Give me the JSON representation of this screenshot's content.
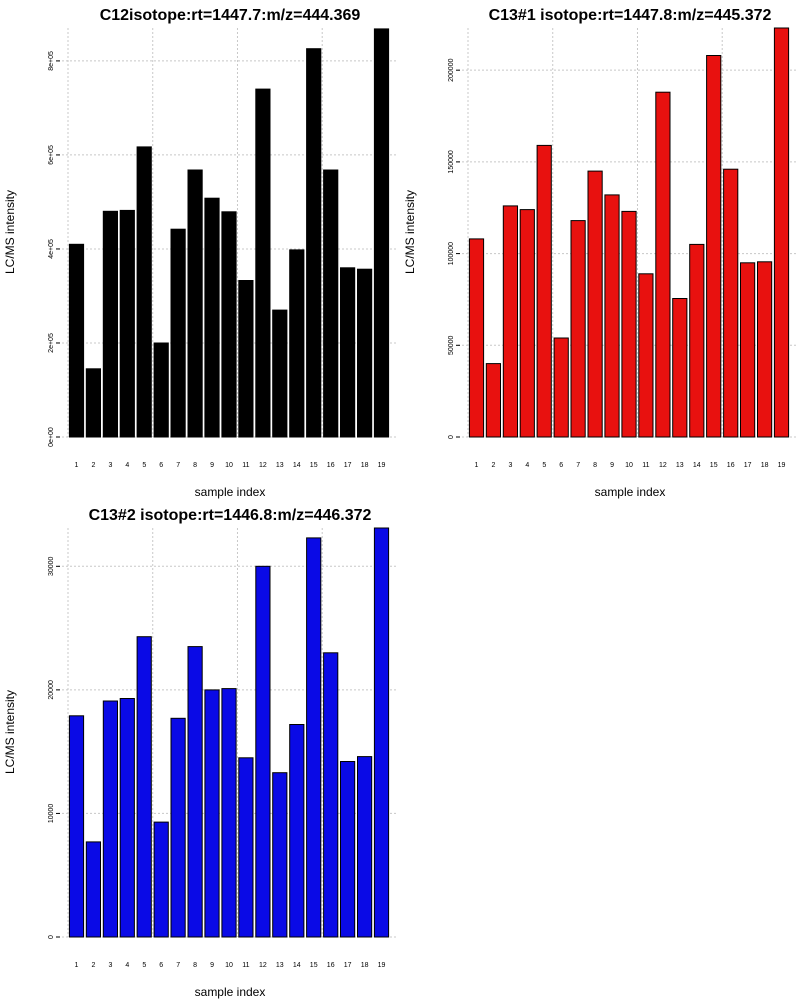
{
  "chart_data": [
    {
      "type": "bar",
      "title": "C12isotope:rt=1447.7:m/z=444.369",
      "xlabel": "sample index",
      "ylabel": "LC/MS intensity",
      "color": "#000000",
      "edge_color": "#000000",
      "categories": [
        "1",
        "2",
        "3",
        "4",
        "5",
        "6",
        "7",
        "8",
        "9",
        "10",
        "11",
        "12",
        "13",
        "14",
        "15",
        "16",
        "17",
        "18",
        "19"
      ],
      "values": [
        410000,
        145000,
        480000,
        482000,
        617000,
        200000,
        442000,
        568000,
        508000,
        479000,
        333000,
        740000,
        270000,
        398000,
        826000,
        568000,
        360000,
        357000,
        868000
      ],
      "ylim": [
        0,
        870000
      ],
      "yticks": [
        0,
        200000,
        400000,
        600000,
        800000
      ],
      "ytick_labels": [
        "0e+00",
        "2e+05",
        "4e+05",
        "6e+05",
        "8e+05"
      ],
      "grid": true
    },
    {
      "type": "bar",
      "title": "C13#1 isotope:rt=1447.8:m/z=445.372",
      "xlabel": "sample index",
      "ylabel": "LC/MS intensity",
      "color": "#e8110f",
      "edge_color": "#000000",
      "categories": [
        "1",
        "2",
        "3",
        "4",
        "5",
        "6",
        "7",
        "8",
        "9",
        "10",
        "11",
        "12",
        "13",
        "14",
        "15",
        "16",
        "17",
        "18",
        "19"
      ],
      "values": [
        108000,
        40000,
        126000,
        124000,
        159000,
        54000,
        118000,
        145000,
        132000,
        123000,
        89000,
        188000,
        75500,
        105000,
        208000,
        146000,
        95000,
        95500,
        223000
      ],
      "ylim": [
        0,
        223000
      ],
      "yticks": [
        0,
        50000,
        100000,
        150000,
        200000
      ],
      "ytick_labels": [
        "0",
        "50000",
        "100000",
        "150000",
        "200000"
      ],
      "grid": true
    },
    {
      "type": "bar",
      "title": "C13#2 isotope:rt=1446.8:m/z=446.372",
      "xlabel": "sample index",
      "ylabel": "LC/MS intensity",
      "color": "#0a0ae6",
      "edge_color": "#000000",
      "categories": [
        "1",
        "2",
        "3",
        "4",
        "5",
        "6",
        "7",
        "8",
        "9",
        "10",
        "11",
        "12",
        "13",
        "14",
        "15",
        "16",
        "17",
        "18",
        "19"
      ],
      "values": [
        17900,
        7700,
        19100,
        19300,
        24300,
        9300,
        17700,
        23500,
        20000,
        20100,
        14500,
        30000,
        13300,
        17200,
        32300,
        23000,
        14200,
        14600,
        33100
      ],
      "ylim": [
        0,
        33100
      ],
      "yticks": [
        0,
        10000,
        20000,
        30000
      ],
      "ytick_labels": [
        "0",
        "10000",
        "20000",
        "30000"
      ],
      "grid": true
    }
  ]
}
